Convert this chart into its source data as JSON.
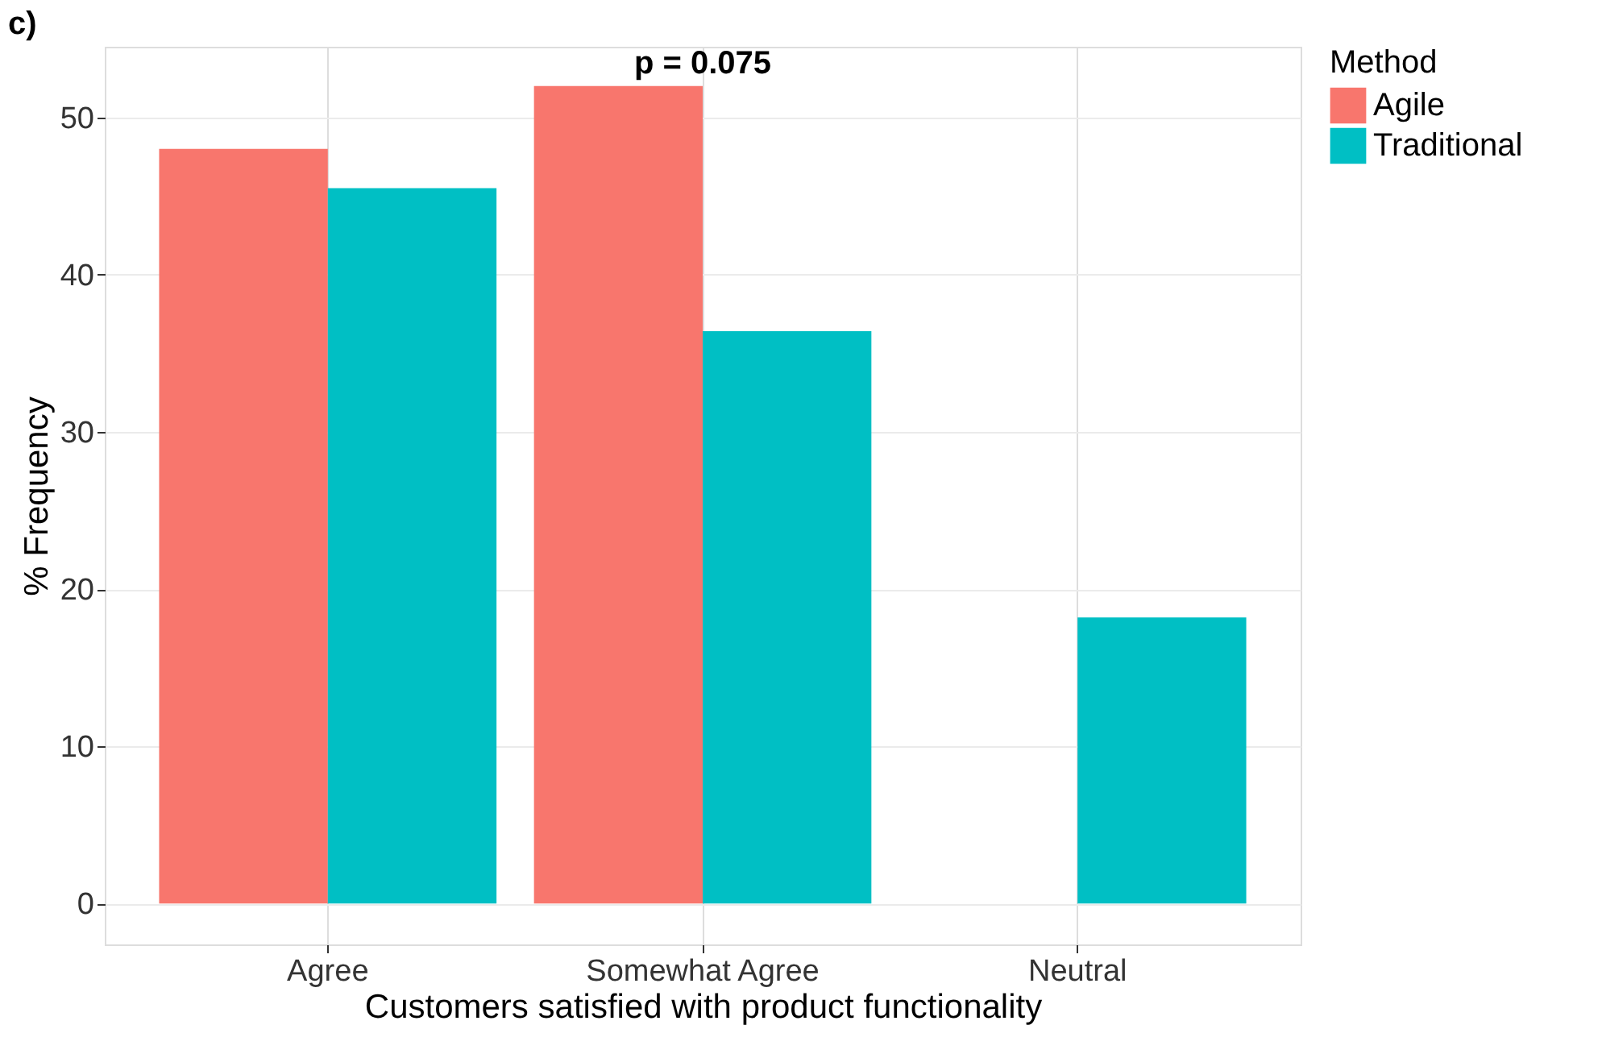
{
  "chart_data": {
    "type": "bar",
    "title": "c)",
    "xlabel": "Customers satisfied with product functionality",
    "ylabel": "% Frequency",
    "legend_title": "Method",
    "categories": [
      "Agree",
      "Somewhat Agree",
      "Neutral"
    ],
    "series": [
      {
        "name": "Agile",
        "color": "#f8766d",
        "values": [
          48,
          52,
          null
        ]
      },
      {
        "name": "Traditional",
        "color": "#00bfc4",
        "values": [
          45.5,
          36.4,
          18.2
        ]
      }
    ],
    "ylim": [
      -2.6,
      54.5
    ],
    "yticks": [
      0,
      10,
      20,
      30,
      40,
      50
    ],
    "grid": true,
    "legend": "right",
    "annotations": [
      {
        "text": "p = 0.075",
        "x": "Somewhat Agree",
        "y": 52
      }
    ]
  }
}
